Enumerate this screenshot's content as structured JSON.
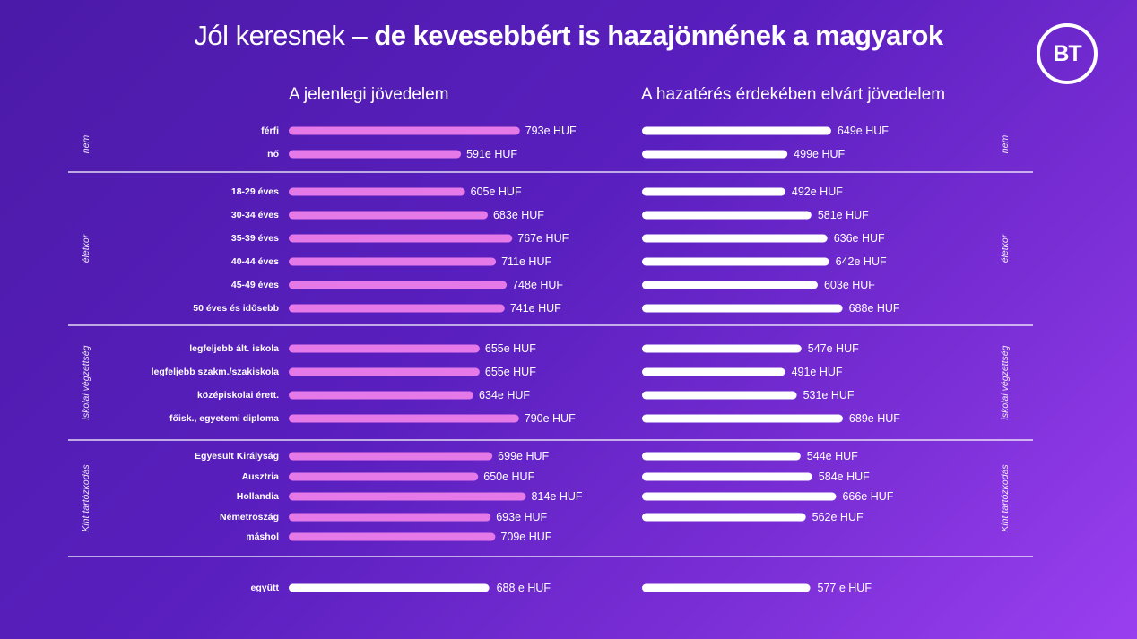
{
  "header": {
    "title_light": "Jól keresnek – ",
    "title_bold": "de kevesebbért is hazajönnének a magyarok",
    "logo": "BT"
  },
  "colors": {
    "current_bar": "#e679e8",
    "expected_bar": "#ffffff",
    "total_bar": "#ffffff",
    "divider": "#ffffff",
    "text": "#ffffff"
  },
  "chart_data": {
    "type": "bar",
    "orientation": "horizontal",
    "unit": "e HUF",
    "series_names": [
      "A jelenlegi jövedelem",
      "A hazatérés érdekében elvárt jövedelem"
    ],
    "groups": [
      {
        "name": "nem",
        "rows": [
          {
            "label": "férfi",
            "current": 793,
            "expected": 649,
            "current_text": "793e HUF",
            "expected_text": "649e HUF"
          },
          {
            "label": "nő",
            "current": 591,
            "expected": 499,
            "current_text": "591e HUF",
            "expected_text": "499e HUF"
          }
        ]
      },
      {
        "name": "életkor",
        "rows": [
          {
            "label": "18-29 éves",
            "current": 605,
            "expected": 492,
            "current_text": "605e HUF",
            "expected_text": "492e HUF"
          },
          {
            "label": "30-34 éves",
            "current": 683,
            "expected": 581,
            "current_text": "683e HUF",
            "expected_text": "581e HUF"
          },
          {
            "label": "35-39 éves",
            "current": 767,
            "expected": 636,
            "current_text": "767e HUF",
            "expected_text": "636e HUF"
          },
          {
            "label": "40-44 éves",
            "current": 711,
            "expected": 642,
            "current_text": "711e HUF",
            "expected_text": "642e HUF"
          },
          {
            "label": "45-49 éves",
            "current": 748,
            "expected": 603,
            "current_text": "748e HUF",
            "expected_text": "603e HUF"
          },
          {
            "label": "50 éves és idősebb",
            "current": 741,
            "expected": 688,
            "current_text": "741e HUF",
            "expected_text": "688e HUF"
          }
        ]
      },
      {
        "name": "iskolai végzettség",
        "rows": [
          {
            "label": "legfeljebb ált. iskola",
            "current": 655,
            "expected": 547,
            "current_text": "655e HUF",
            "expected_text": "547e HUF"
          },
          {
            "label": "legfeljebb szakm./szakiskola",
            "current": 655,
            "expected": 491,
            "current_text": "655e HUF",
            "expected_text": "491e HUF"
          },
          {
            "label": "középiskolai érett.",
            "current": 634,
            "expected": 531,
            "current_text": "634e HUF",
            "expected_text": "531e HUF"
          },
          {
            "label": "főisk., egyetemi diploma",
            "current": 790,
            "expected": 689,
            "current_text": "790e HUF",
            "expected_text": "689e HUF"
          }
        ]
      },
      {
        "name": "Kint tartózkodás",
        "rows": [
          {
            "label": "Egyesült Királyság",
            "current": 699,
            "expected": 544,
            "current_text": "699e HUF",
            "expected_text": "544e HUF"
          },
          {
            "label": "Ausztria",
            "current": 650,
            "expected": 584,
            "current_text": "650e HUF",
            "expected_text": "584e HUF"
          },
          {
            "label": "Hollandia",
            "current": 814,
            "expected": 666,
            "current_text": "814e HUF",
            "expected_text": "666e HUF"
          },
          {
            "label": "Németroszág",
            "current": 693,
            "expected": 562,
            "current_text": "693e HUF",
            "expected_text": "562e HUF"
          },
          {
            "label": "máshol",
            "current": 709,
            "expected": null,
            "current_text": "709e HUF",
            "expected_text": ""
          }
        ]
      }
    ],
    "total": {
      "label": "együtt",
      "current": 688,
      "expected": 577,
      "current_text": "688 e HUF",
      "expected_text": "577 e HUF"
    }
  }
}
